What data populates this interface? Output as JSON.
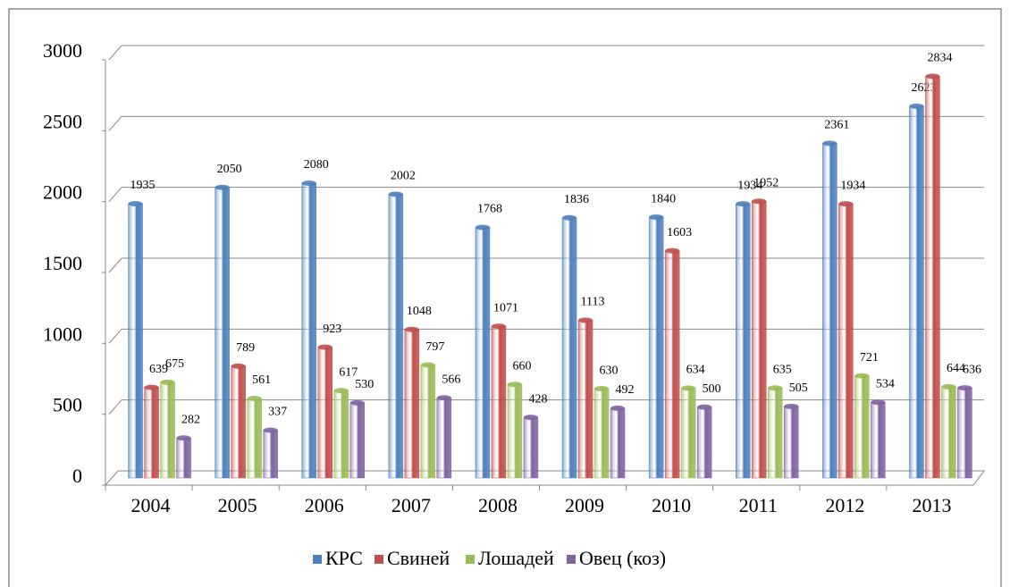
{
  "chart_data": {
    "type": "bar",
    "categories": [
      "2004",
      "2005",
      "2006",
      "2007",
      "2008",
      "2009",
      "2010",
      "2011",
      "2012",
      "2013"
    ],
    "series": [
      {
        "name": "КРС",
        "color": "#4f81bd",
        "values": [
          1935,
          2050,
          2080,
          2002,
          1768,
          1836,
          1840,
          1934,
          2361,
          2623
        ]
      },
      {
        "name": "Свиней",
        "color": "#c0504d",
        "values": [
          639,
          789,
          923,
          1048,
          1071,
          1113,
          1603,
          1952,
          1934,
          2834
        ]
      },
      {
        "name": "Лошадей",
        "color": "#9bbb59",
        "values": [
          675,
          561,
          617,
          797,
          660,
          630,
          634,
          635,
          721,
          644
        ]
      },
      {
        "name": "Овец (коз)",
        "color": "#8064a2",
        "values": [
          282,
          337,
          530,
          566,
          428,
          492,
          500,
          505,
          534,
          636
        ]
      }
    ],
    "ylim": [
      0,
      3000
    ],
    "yticks": [
      0,
      500,
      1000,
      1500,
      2000,
      2500,
      3000
    ],
    "grid": true,
    "legend": "bottom"
  }
}
